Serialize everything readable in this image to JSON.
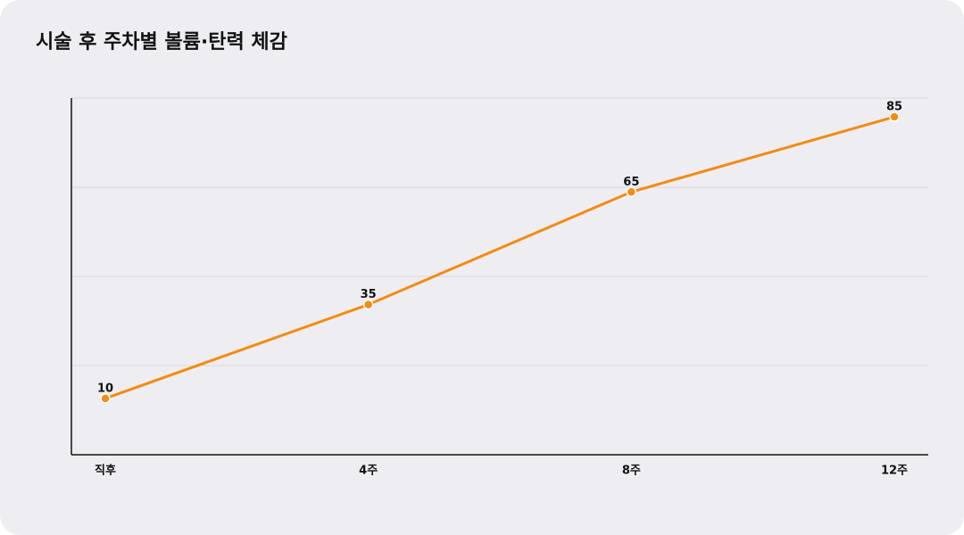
{
  "chart_data": {
    "type": "line",
    "title": "시술 후 주차별 볼륨·탄력 체감",
    "categories": [
      "직후",
      "4주",
      "8주",
      "12주"
    ],
    "series": [
      {
        "name": "볼륨·탄력 체감",
        "color": "#f28c12",
        "values": [
          10,
          35,
          65,
          85
        ]
      }
    ],
    "ylim": [
      -5,
      90
    ],
    "grid": true
  }
}
